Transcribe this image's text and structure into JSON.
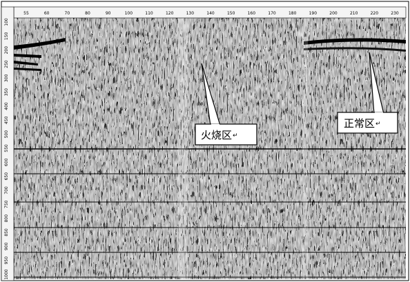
{
  "figure": {
    "image_type": "seismic record section (wiggle traces)",
    "x_ticks": [
      "55",
      "60",
      "70",
      "80",
      "90",
      "100",
      "110",
      "120",
      "130",
      "140",
      "150",
      "160",
      "170",
      "180",
      "190",
      "200",
      "210",
      "220",
      "230"
    ],
    "y_ticks": [
      "100",
      "150",
      "200",
      "250",
      "300",
      "350",
      "400",
      "450",
      "500",
      "550",
      "600",
      "650",
      "700",
      "750",
      "800",
      "850",
      "900",
      "950",
      "1000"
    ],
    "annotations": [
      {
        "text": "火烧区",
        "return_mark": "↵"
      },
      {
        "text": "正常区",
        "return_mark": "↵"
      }
    ]
  }
}
